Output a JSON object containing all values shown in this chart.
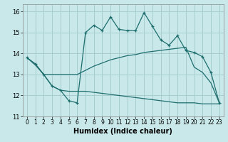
{
  "xlabel": "Humidex (Indice chaleur)",
  "bg_color": "#c8e8ea",
  "grid_color": "#a8cdd0",
  "line_color": "#1e6e6e",
  "xlim": [
    -0.5,
    23.5
  ],
  "ylim": [
    11.0,
    16.35
  ],
  "yticks": [
    11,
    12,
    13,
    14,
    15,
    16
  ],
  "xticks": [
    0,
    1,
    2,
    3,
    4,
    5,
    6,
    7,
    8,
    9,
    10,
    11,
    12,
    13,
    14,
    15,
    16,
    17,
    18,
    19,
    20,
    21,
    22,
    23
  ],
  "line_upper_x": [
    0,
    1,
    2,
    3,
    4,
    5,
    6,
    7,
    8,
    9,
    10,
    11,
    12,
    13,
    14,
    15,
    16,
    17,
    18,
    19,
    20,
    21,
    22,
    23
  ],
  "line_upper_y": [
    13.8,
    13.5,
    13.0,
    13.0,
    13.0,
    13.0,
    13.0,
    13.2,
    13.4,
    13.55,
    13.7,
    13.8,
    13.9,
    13.95,
    14.05,
    14.1,
    14.15,
    14.2,
    14.25,
    14.3,
    13.35,
    13.1,
    12.6,
    11.65
  ],
  "line_lower_x": [
    0,
    1,
    2,
    3,
    4,
    5,
    6,
    7,
    8,
    9,
    10,
    11,
    12,
    13,
    14,
    15,
    16,
    17,
    18,
    19,
    20,
    21,
    22,
    23
  ],
  "line_lower_y": [
    13.8,
    13.45,
    13.0,
    12.45,
    12.25,
    12.2,
    12.2,
    12.2,
    12.15,
    12.1,
    12.05,
    12.0,
    11.95,
    11.9,
    11.85,
    11.8,
    11.75,
    11.7,
    11.65,
    11.65,
    11.65,
    11.6,
    11.6,
    11.6
  ],
  "line_main_x": [
    0,
    1,
    2,
    3,
    4,
    5,
    6,
    7,
    8,
    9,
    10,
    11,
    12,
    13,
    14,
    15,
    16,
    17,
    18,
    19,
    20,
    21,
    22,
    23
  ],
  "line_main_y": [
    13.8,
    13.5,
    13.0,
    12.45,
    12.25,
    11.75,
    11.65,
    15.0,
    15.35,
    15.1,
    15.75,
    15.15,
    15.1,
    15.1,
    15.95,
    15.3,
    14.65,
    14.4,
    14.85,
    14.15,
    14.05,
    13.85,
    13.1,
    11.65
  ]
}
